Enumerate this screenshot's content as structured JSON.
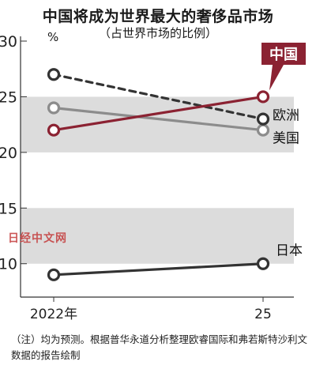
{
  "header": {
    "title": "中国将成为世界最大的奢侈品市场",
    "subtitle": "（占世界市场的比例）",
    "unit": "%"
  },
  "watermark": "日经中文网",
  "note": "（注）均为预测。根据普华永道分析整理欧睿国际和弗若斯特沙利文数据的报告绘制",
  "chart_data": {
    "type": "line",
    "x": [
      "2022年",
      "25"
    ],
    "ylim": [
      7,
      30
    ],
    "yticks": [
      10,
      15,
      20,
      25,
      30
    ],
    "shaded_bands": [
      [
        20,
        25
      ],
      [
        10,
        15
      ]
    ],
    "grid": false,
    "series": [
      {
        "name": "中国",
        "values": [
          22,
          25
        ],
        "color": "#8b2232",
        "dash": false,
        "label_style": "callout"
      },
      {
        "name": "欧洲",
        "values": [
          27,
          23
        ],
        "color": "#333333",
        "dash": true,
        "label_style": "plain"
      },
      {
        "name": "美国",
        "values": [
          24,
          22
        ],
        "color": "#8c8c8c",
        "dash": false,
        "label_style": "plain"
      },
      {
        "name": "日本",
        "values": [
          9,
          10
        ],
        "color": "#333333",
        "dash": false,
        "label_style": "plain"
      }
    ]
  }
}
